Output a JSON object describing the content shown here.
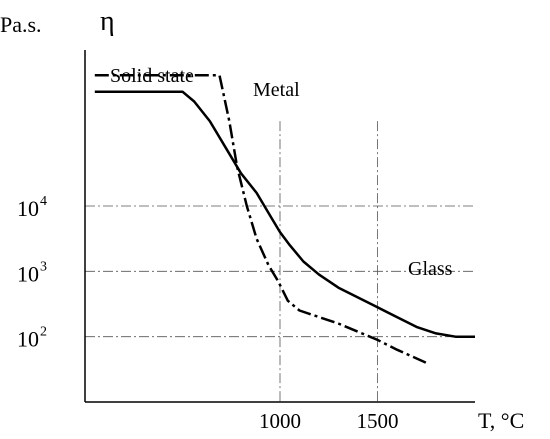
{
  "chart_data": {
    "type": "line",
    "title": "",
    "ylabel_unit": "Pa.s.",
    "ylabel_symbol": "η",
    "xlabel": "T, °C",
    "x_axis": {
      "range": [
        0,
        2000
      ],
      "ticks": [
        {
          "value": 1000,
          "label": "1000"
        },
        {
          "value": 1500,
          "label": "1500"
        }
      ]
    },
    "y_axis": {
      "scale": "log10",
      "range": [
        1.0,
        7.0
      ],
      "ticks": [
        {
          "value": 2,
          "base": "10",
          "exp": "2"
        },
        {
          "value": 3,
          "base": "10",
          "exp": "3"
        },
        {
          "value": 4,
          "base": "10",
          "exp": "4"
        }
      ]
    },
    "grid": {
      "horizontal": [
        2,
        3,
        4
      ],
      "vertical": [
        1000,
        1500
      ],
      "style": "dash-dot"
    },
    "series": [
      {
        "name": "Metal",
        "style": "dash-dot",
        "color": "#000000",
        "points": [
          [
            50,
            6.0
          ],
          [
            690,
            6.0
          ],
          [
            740,
            5.3
          ],
          [
            780,
            4.6
          ],
          [
            830,
            4.0
          ],
          [
            880,
            3.5
          ],
          [
            940,
            3.1
          ],
          [
            990,
            2.85
          ],
          [
            1040,
            2.55
          ],
          [
            1100,
            2.4
          ],
          [
            1300,
            2.2
          ],
          [
            1500,
            1.95
          ],
          [
            1600,
            1.8
          ],
          [
            1750,
            1.6
          ]
        ],
        "label_position": "end-of-plateau"
      },
      {
        "name": "Glass",
        "style": "solid",
        "color": "#000000",
        "points": [
          [
            50,
            5.75
          ],
          [
            500,
            5.75
          ],
          [
            560,
            5.6
          ],
          [
            640,
            5.3
          ],
          [
            720,
            4.9
          ],
          [
            800,
            4.5
          ],
          [
            880,
            4.2
          ],
          [
            960,
            3.8
          ],
          [
            1000,
            3.6
          ],
          [
            1050,
            3.4
          ],
          [
            1120,
            3.15
          ],
          [
            1200,
            2.95
          ],
          [
            1300,
            2.75
          ],
          [
            1400,
            2.6
          ],
          [
            1500,
            2.45
          ],
          [
            1600,
            2.3
          ],
          [
            1700,
            2.15
          ],
          [
            1800,
            2.05
          ],
          [
            1900,
            2.0
          ],
          [
            2000,
            2.0
          ]
        ],
        "label_position": "right"
      }
    ],
    "annotations": [
      {
        "text": "Solid state"
      }
    ]
  }
}
